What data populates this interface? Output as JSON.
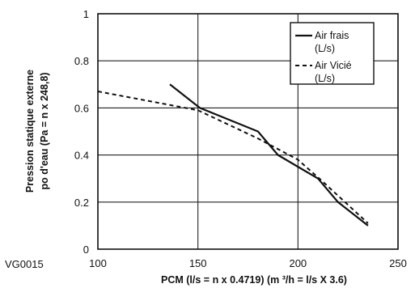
{
  "figure_code": "VG0015",
  "chart_data": {
    "type": "line",
    "xlabel": "PCM (l/s = n x 0.4719) (m ³/h = l/s X 3.6)",
    "ylabel_lines": [
      "Pression statique externe",
      "po d'eau (Pa = n x 248,8)"
    ],
    "xlim": [
      100,
      250
    ],
    "ylim": [
      0,
      1
    ],
    "x_ticks": [
      100,
      150,
      200,
      250
    ],
    "y_ticks": [
      0,
      0.2,
      0.4,
      0.6,
      0.8,
      1
    ],
    "x_tick_labels": [
      "100",
      "150",
      "200",
      "250"
    ],
    "y_tick_labels": [
      "0",
      "0.2",
      "0.4",
      "0.6",
      "0.8",
      "1"
    ],
    "grid": true,
    "legend_position": "top-right",
    "series": [
      {
        "name_lines": [
          "Air frais",
          "(L/s)"
        ],
        "style": "solid",
        "color": "#111111",
        "points": [
          [
            136,
            0.7
          ],
          [
            151,
            0.6
          ],
          [
            180,
            0.5
          ],
          [
            190,
            0.4
          ],
          [
            210,
            0.3
          ],
          [
            220,
            0.2
          ],
          [
            235,
            0.1
          ]
        ]
      },
      {
        "name_lines": [
          "Air Vicié",
          "(L/s)"
        ],
        "style": "dashed",
        "color": "#111111",
        "points": [
          [
            100,
            0.67
          ],
          [
            150,
            0.59
          ],
          [
            180,
            0.47
          ],
          [
            200,
            0.38
          ],
          [
            212,
            0.29
          ],
          [
            235,
            0.11
          ]
        ]
      }
    ]
  }
}
